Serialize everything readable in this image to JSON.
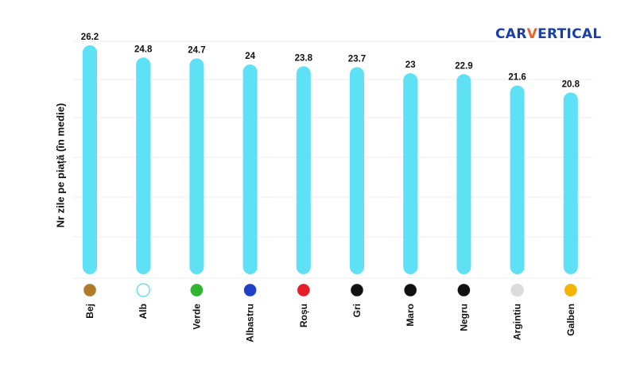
{
  "logo": {
    "part1": "CAR",
    "part2": "V",
    "part3": "ERTICAL"
  },
  "chart_data": {
    "type": "bar",
    "ylabel": "Nr zile pe piață (în medie)",
    "xlabel": "",
    "title": "",
    "categories": [
      "Bej",
      "Alb",
      "Verde",
      "Albastru",
      "Roșu",
      "Gri",
      "Maro",
      "Negru",
      "Argintiu",
      "Galben"
    ],
    "values": [
      26.2,
      24.8,
      24.7,
      24,
      23.8,
      23.7,
      23,
      22.9,
      21.6,
      20.8
    ],
    "value_labels": [
      "26.2",
      "24.8",
      "24.7",
      "24",
      "23.8",
      "23.7",
      "23",
      "22.9",
      "21.6",
      "20.8"
    ],
    "marker_colors": [
      "#b07a2a",
      "#ffffff",
      "#2fb52f",
      "#1f3fc7",
      "#e81d2a",
      "#111111",
      "#111111",
      "#111111",
      "#dcdcdc",
      "#f5b400"
    ],
    "bar_color": "#5ee0f5",
    "ylim": [
      0,
      26.2
    ],
    "grid": true,
    "legend": "none"
  }
}
